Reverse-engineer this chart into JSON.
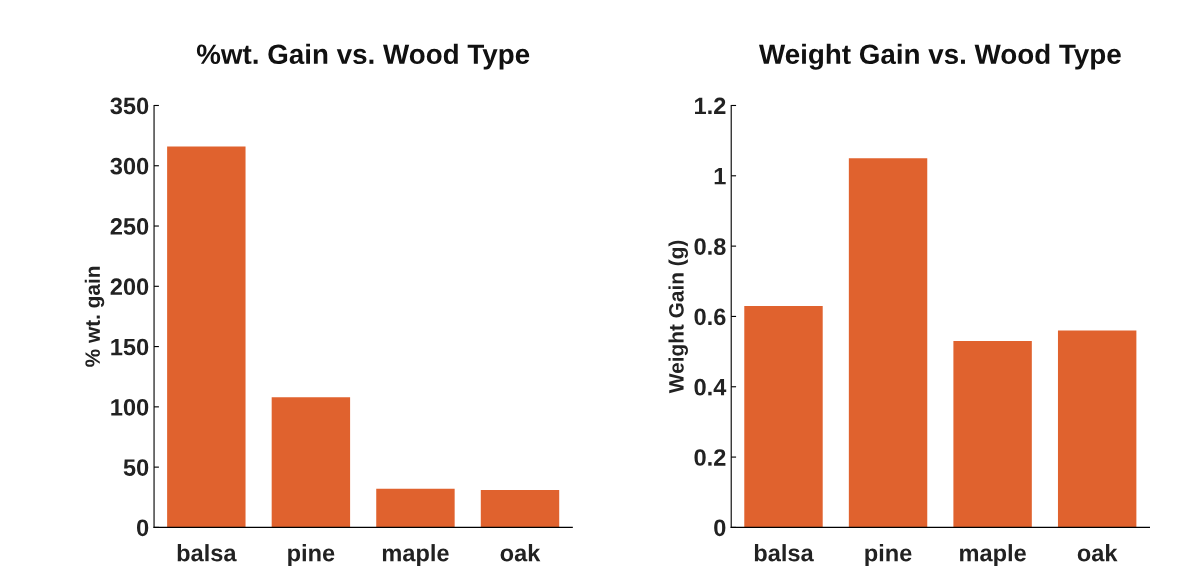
{
  "chart_data": [
    {
      "type": "bar",
      "title": "%wt. Gain vs. Wood Type",
      "ylabel": "% wt. gain",
      "categories": [
        "balsa",
        "pine",
        "maple",
        "oak"
      ],
      "values": [
        316,
        108,
        32,
        31
      ],
      "color": "#e0622e",
      "ylim": [
        0,
        350
      ],
      "yticks": [
        0,
        50,
        100,
        150,
        200,
        250,
        300,
        350
      ],
      "grid": false
    },
    {
      "type": "bar",
      "title": "Weight Gain vs. Wood Type",
      "ylabel": "Weight Gain (g)",
      "categories": [
        "balsa",
        "pine",
        "maple",
        "oak"
      ],
      "values": [
        0.63,
        1.05,
        0.53,
        0.56
      ],
      "color": "#e0622e",
      "ylim": [
        0,
        1.2
      ],
      "yticks": [
        0,
        0.2,
        0.4,
        0.6,
        0.8,
        1,
        1.2
      ],
      "grid": false
    }
  ]
}
